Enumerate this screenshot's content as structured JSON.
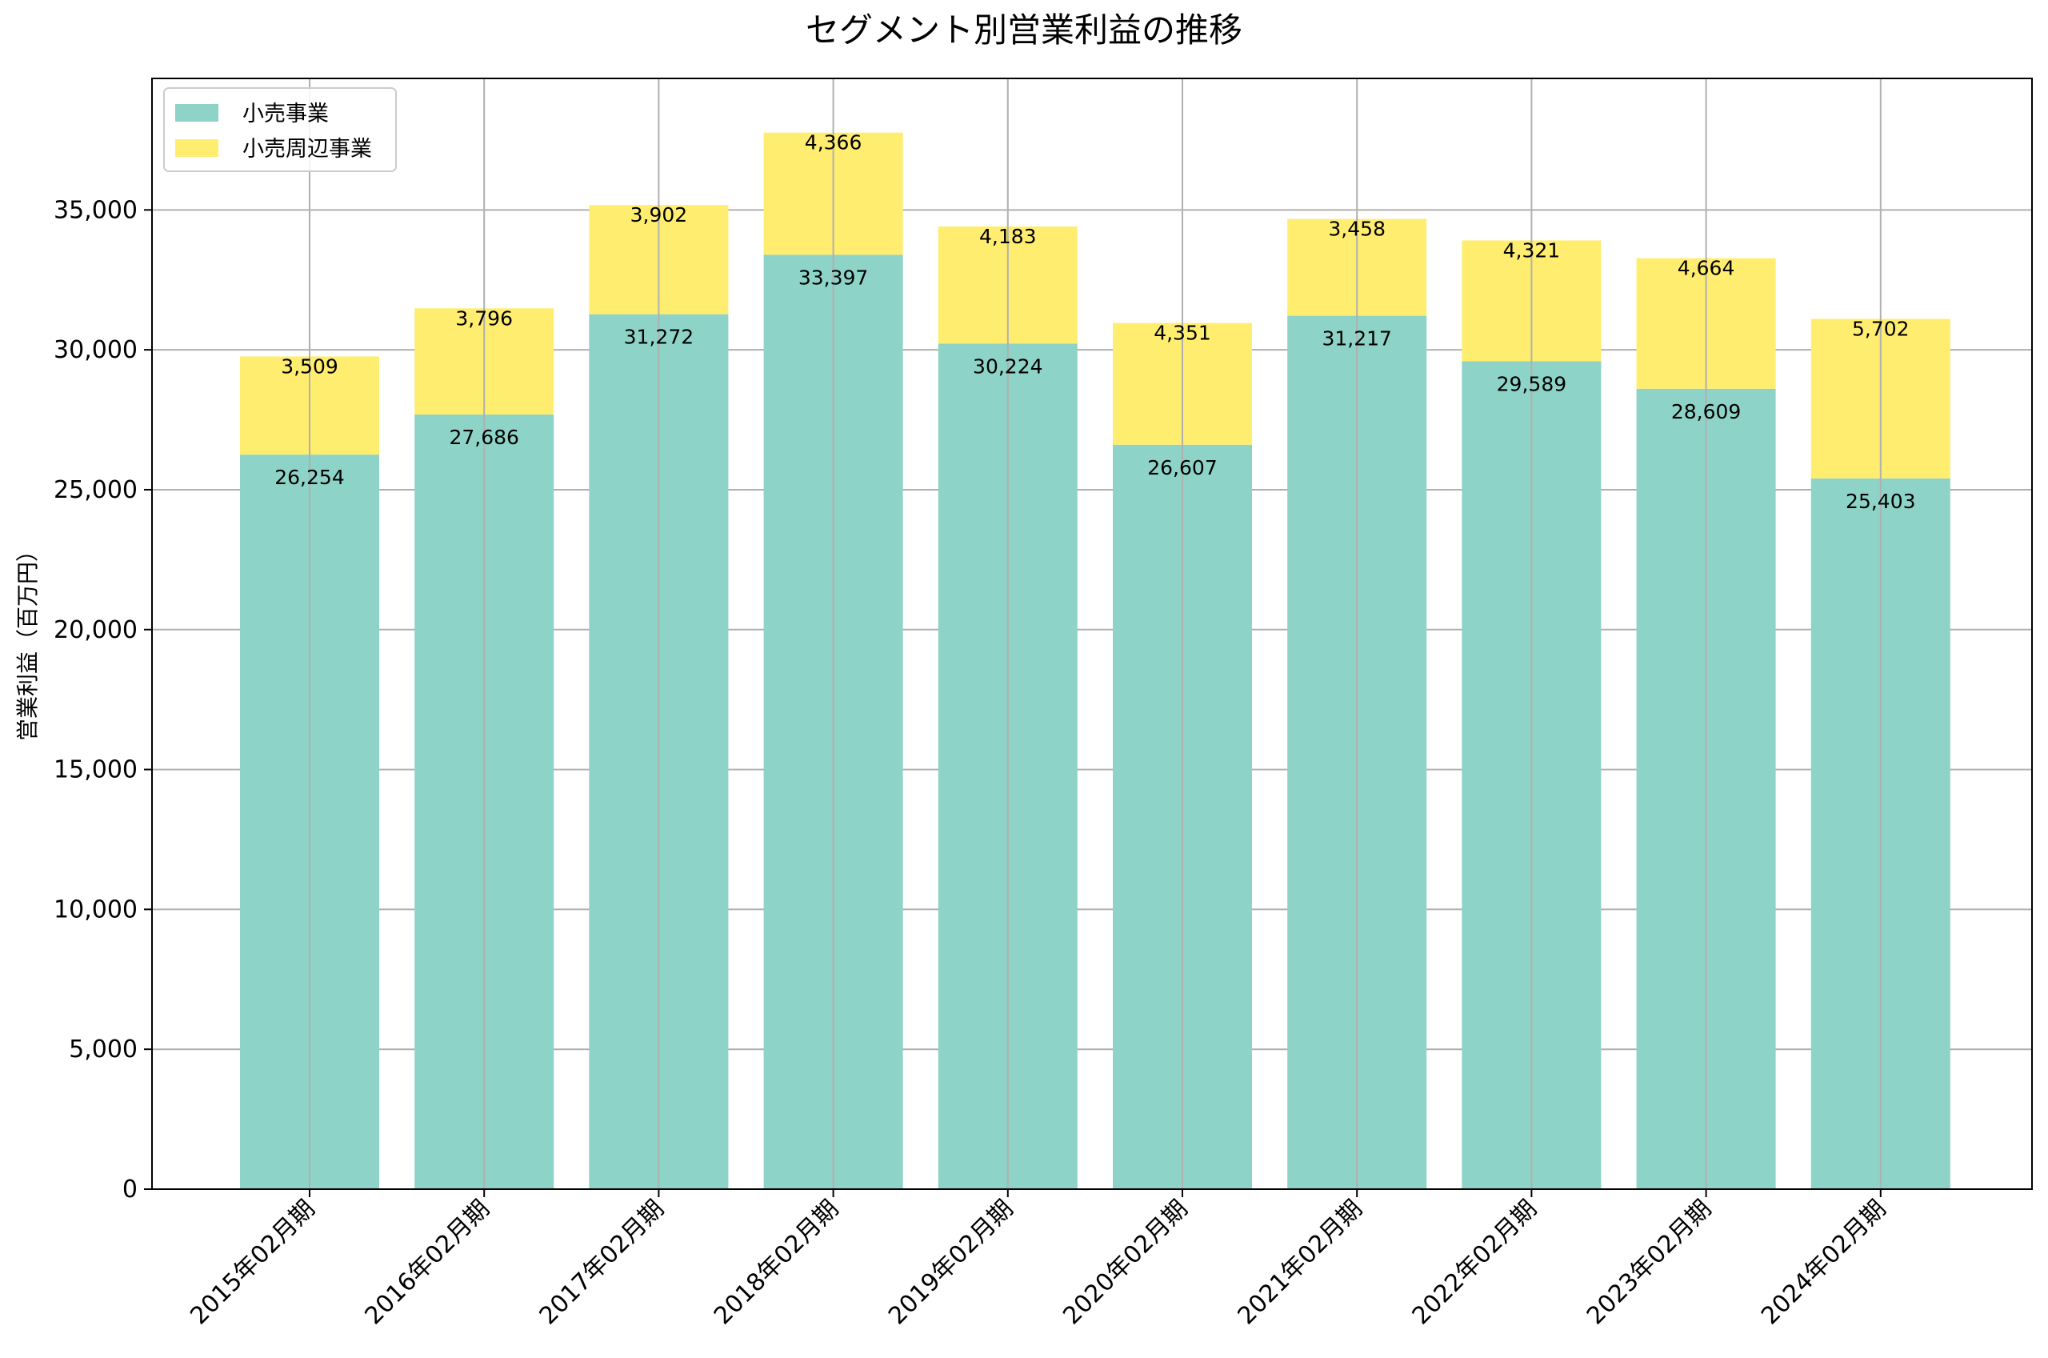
{
  "chart_data": {
    "type": "bar",
    "stacked": true,
    "title": "セグメント別営業利益の推移",
    "xlabel": "",
    "ylabel": "営業利益（百万円）",
    "ylim": [
      0,
      39700
    ],
    "yticks": [
      0,
      5000,
      10000,
      15000,
      20000,
      25000,
      30000,
      35000
    ],
    "ytick_labels": [
      "0",
      "5,000",
      "10,000",
      "15,000",
      "20,000",
      "25,000",
      "30,000",
      "35,000"
    ],
    "grid": true,
    "legend_position": "top-left",
    "categories": [
      "2015年02月期",
      "2016年02月期",
      "2017年02月期",
      "2018年02月期",
      "2019年02月期",
      "2020年02月期",
      "2021年02月期",
      "2022年02月期",
      "2023年02月期",
      "2024年02月期"
    ],
    "series": [
      {
        "name": "小売事業",
        "color": "#8dd3c7",
        "values": [
          26254,
          27686,
          31272,
          33397,
          30224,
          26607,
          31217,
          29589,
          28609,
          25403
        ],
        "labels": [
          "26,254",
          "27,686",
          "31,272",
          "33,397",
          "30,224",
          "26,607",
          "31,217",
          "29,589",
          "28,609",
          "25,403"
        ]
      },
      {
        "name": "小売周辺事業",
        "color": "#ffed6f",
        "values": [
          3509,
          3796,
          3902,
          4366,
          4183,
          4351,
          3458,
          4321,
          4664,
          5702
        ],
        "labels": [
          "3,509",
          "3,796",
          "3,902",
          "4,366",
          "4,183",
          "4,351",
          "3,458",
          "4,321",
          "4,664",
          "5,702"
        ]
      }
    ]
  }
}
